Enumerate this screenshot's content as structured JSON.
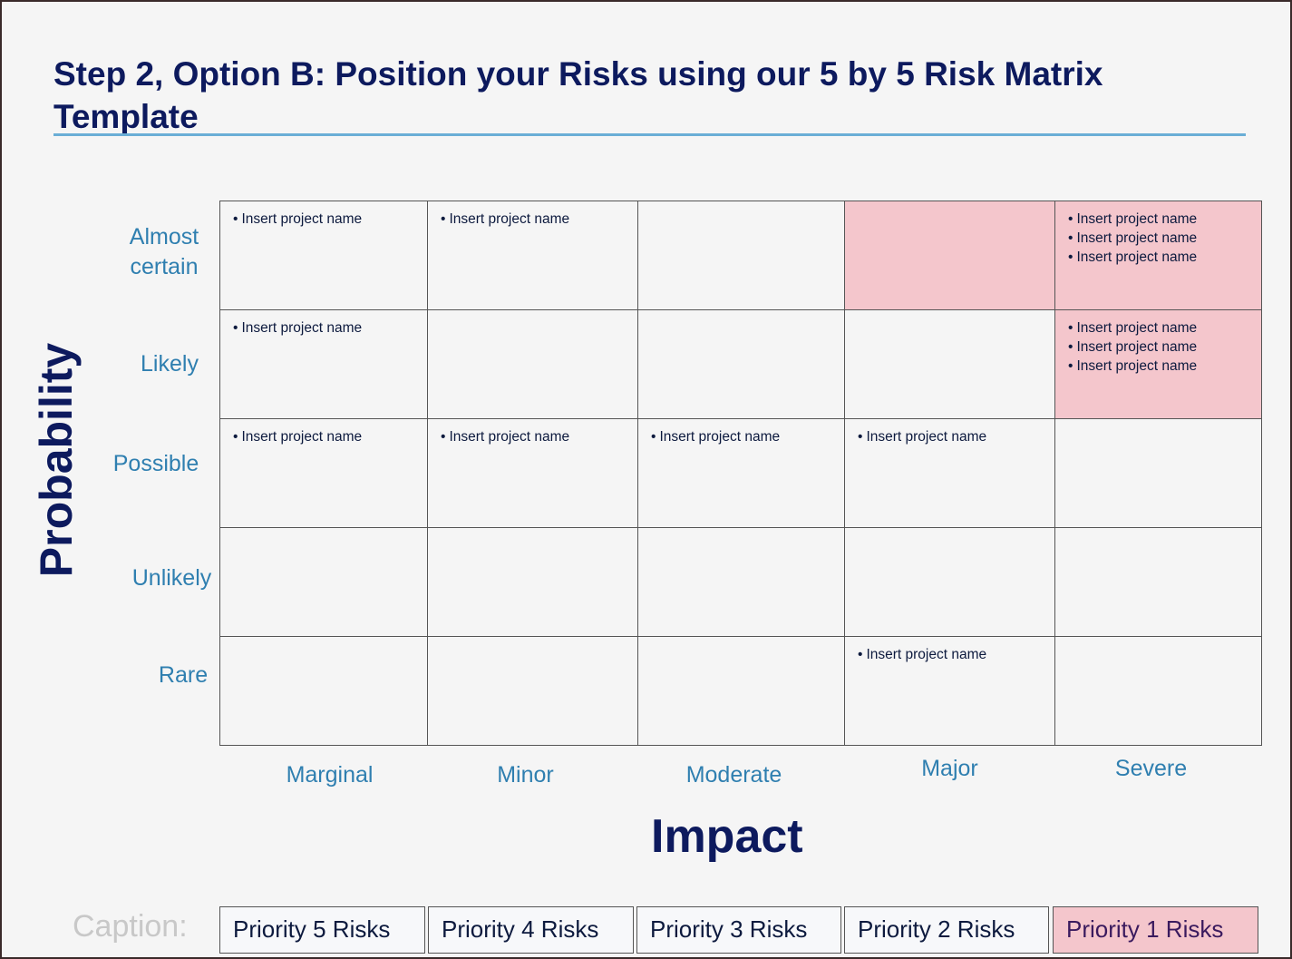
{
  "title": "Step 2, Option B: Position your Risks using our 5 by 5 Risk Matrix Template",
  "y_axis_label": "Probability",
  "x_axis_label": "Impact",
  "rows": [
    "Almost certain",
    "Likely",
    "Possible",
    "Unlikely",
    "Rare"
  ],
  "columns": [
    "Marginal",
    "Minor",
    "Moderate",
    "Major",
    "Severe"
  ],
  "cells": [
    [
      [
        "Insert project name"
      ],
      [
        "Insert project name"
      ],
      [],
      [],
      [
        "Insert project name",
        "Insert project name",
        "Insert project name"
      ]
    ],
    [
      [
        "Insert project name"
      ],
      [],
      [],
      [],
      [
        "Insert project name",
        "Insert project name",
        "Insert project name"
      ]
    ],
    [
      [
        "Insert project name"
      ],
      [
        "Insert project name"
      ],
      [
        "Insert project name"
      ],
      [
        "Insert project name"
      ],
      []
    ],
    [
      [],
      [],
      [],
      [],
      []
    ],
    [
      [],
      [],
      [],
      [
        "Insert project name"
      ],
      []
    ]
  ],
  "highlighted_cells": [
    [
      0,
      3
    ],
    [
      0,
      4
    ],
    [
      1,
      4
    ]
  ],
  "caption_label": "Caption:",
  "legend": [
    "Priority 5 Risks",
    "Priority 4 Risks",
    "Priority 3 Risks",
    "Priority 2 Risks",
    "Priority 1 Risks"
  ],
  "colors": {
    "title": "#0d1a5e",
    "label": "#2f7fb0",
    "priority1": "#f4c6cc",
    "rule": "#6aaed6"
  }
}
